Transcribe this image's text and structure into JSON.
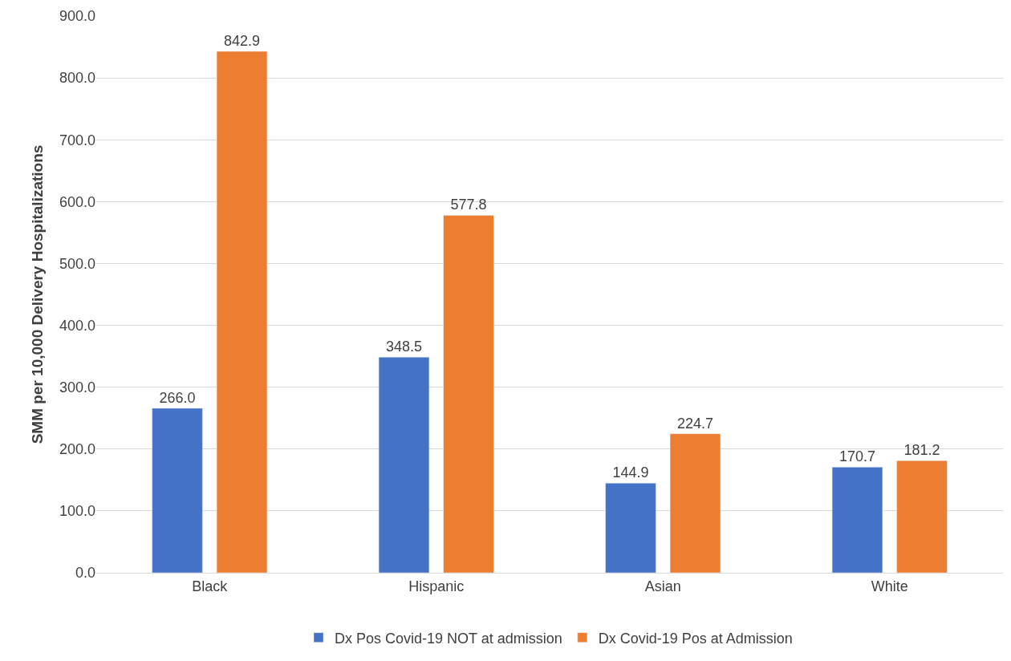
{
  "chart_data": {
    "type": "bar",
    "ylabel": "SMM per 10,000 Delivery Hospitalizations",
    "categories": [
      "Black",
      "Hispanic",
      "Asian",
      "White"
    ],
    "series": [
      {
        "name": "Dx Pos Covid-19 NOT at admission",
        "color": "#4472c4",
        "values": [
          266.0,
          348.5,
          144.9,
          170.7
        ],
        "value_labels": [
          "266.0",
          "348.5",
          "144.9",
          "170.7"
        ]
      },
      {
        "name": "Dx Covid-19 Pos at Admission",
        "color": "#ed7d31",
        "values": [
          842.9,
          577.8,
          224.7,
          181.2
        ],
        "value_labels": [
          "842.9",
          "577.8",
          "224.7",
          "181.2"
        ]
      }
    ],
    "ylim": [
      0,
      900
    ],
    "yticks": [
      {
        "value": 0,
        "label": "0.0"
      },
      {
        "value": 100,
        "label": "100.0"
      },
      {
        "value": 200,
        "label": "200.0"
      },
      {
        "value": 300,
        "label": "300.0"
      },
      {
        "value": 400,
        "label": "400.0"
      },
      {
        "value": 500,
        "label": "500.0"
      },
      {
        "value": 600,
        "label": "600.0"
      },
      {
        "value": 700,
        "label": "700.0"
      },
      {
        "value": 800,
        "label": "800.0"
      },
      {
        "value": 900,
        "label": "900.0"
      }
    ],
    "grid": "y",
    "legend": "bottom"
  }
}
